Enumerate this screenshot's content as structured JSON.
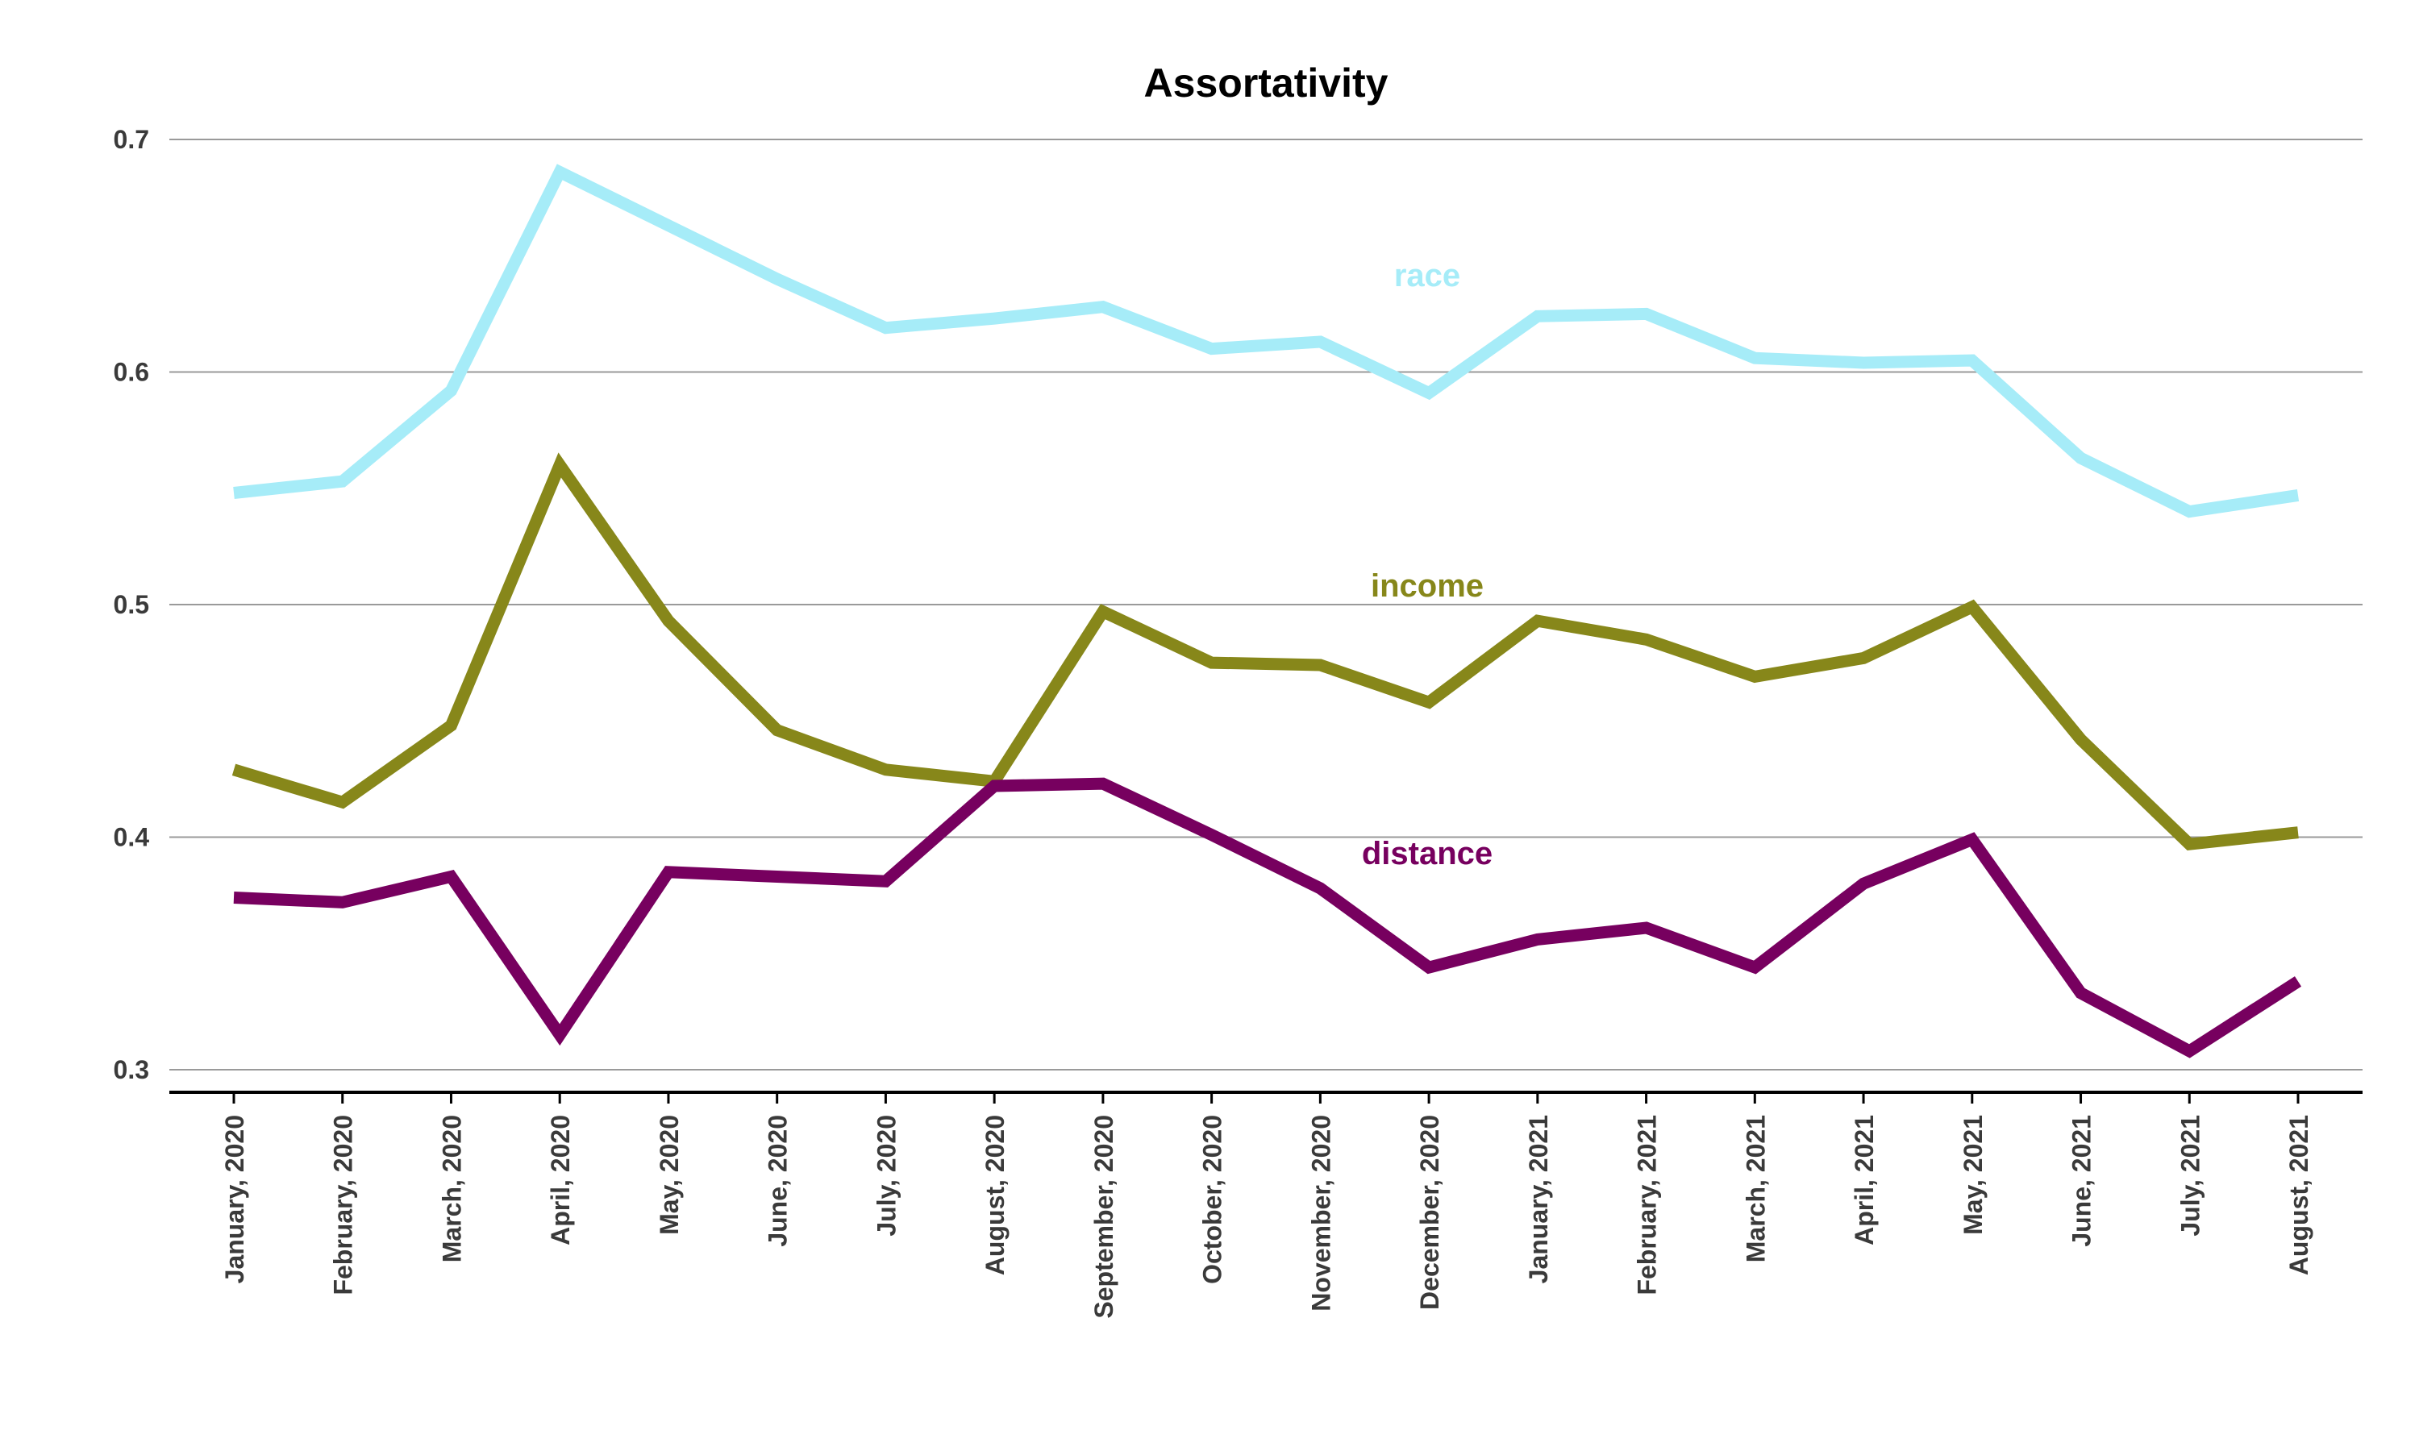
{
  "chart_data": {
    "type": "line",
    "title": "Assortativity",
    "xlabel": "",
    "ylabel": "",
    "ylim": [
      0.29,
      0.71
    ],
    "grid": true,
    "legend": "inline labels",
    "yticks": [
      "0.3",
      "0.4",
      "0.5",
      "0.6",
      "0.7"
    ],
    "categories": [
      "January, 2020",
      "February, 2020",
      "March, 2020",
      "April, 2020",
      "May, 2020",
      "June, 2020",
      "July, 2020",
      "August, 2020",
      "September, 2020",
      "October, 2020",
      "November, 2020",
      "December, 2020",
      "January, 2021",
      "February, 2021",
      "March, 2021",
      "April, 2021",
      "May, 2021",
      "June, 2021",
      "July, 2021",
      "August, 2021"
    ],
    "series": [
      {
        "name": "race",
        "color": "#a6ecf8",
        "values": [
          0.548,
          0.553,
          0.592,
          0.686,
          0.663,
          0.64,
          0.619,
          0.623,
          0.628,
          0.61,
          0.613,
          0.591,
          0.624,
          0.625,
          0.606,
          0.604,
          0.605,
          0.563,
          0.54,
          0.547
        ]
      },
      {
        "name": "income",
        "color": "#87871a",
        "values": [
          0.429,
          0.415,
          0.448,
          0.56,
          0.493,
          0.446,
          0.429,
          0.424,
          0.497,
          0.475,
          0.474,
          0.458,
          0.493,
          0.485,
          0.469,
          0.477,
          0.499,
          0.442,
          0.397,
          0.402
        ]
      },
      {
        "name": "distance",
        "color": "#77005f",
        "values": [
          0.374,
          0.372,
          0.383,
          0.315,
          0.385,
          0.383,
          0.381,
          0.422,
          0.423,
          0.401,
          0.378,
          0.344,
          0.356,
          0.361,
          0.344,
          0.38,
          0.399,
          0.333,
          0.308,
          0.338
        ]
      }
    ]
  }
}
